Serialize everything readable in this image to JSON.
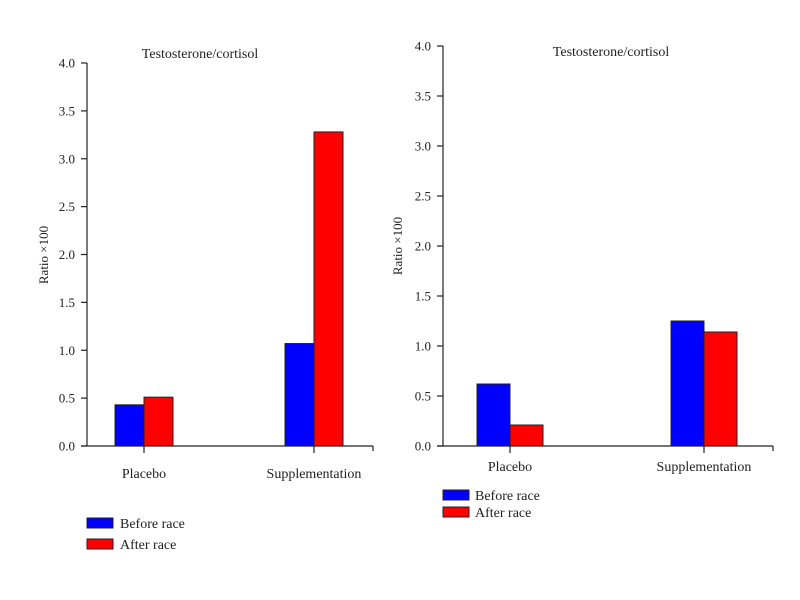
{
  "chart_data": [
    {
      "type": "bar",
      "title": "Testosterone/cortisol",
      "xlabel": "",
      "ylabel": "Ratio ×100",
      "categories": [
        "Placebo",
        "Supplementation"
      ],
      "ylim": [
        0,
        4.0
      ],
      "yticks": [
        "0.0",
        "0.5",
        "1.0",
        "1.5",
        "2.0",
        "2.5",
        "3.0",
        "3.5",
        "4.0"
      ],
      "series": [
        {
          "name": "Before race",
          "color": "#0000ff",
          "values": [
            0.43,
            1.07
          ]
        },
        {
          "name": "After race",
          "color": "#ff0000",
          "values": [
            0.51,
            3.28
          ]
        }
      ],
      "grid": false,
      "legend": "bottom-left"
    },
    {
      "type": "bar",
      "title": "Testosterone/cortisol",
      "xlabel": "",
      "ylabel": "Ratio ×100",
      "categories": [
        "Placebo",
        "Supplementation"
      ],
      "ylim": [
        0,
        4.0
      ],
      "yticks": [
        "0.0",
        "0.5",
        "1.0",
        "1.5",
        "2.0",
        "2.5",
        "3.0",
        "3.5",
        "4.0"
      ],
      "series": [
        {
          "name": "Before race",
          "color": "#0000ff",
          "values": [
            0.62,
            1.25
          ]
        },
        {
          "name": "After race",
          "color": "#ff0000",
          "values": [
            0.21,
            1.14
          ]
        }
      ],
      "grid": false,
      "legend": "bottom-left"
    }
  ]
}
